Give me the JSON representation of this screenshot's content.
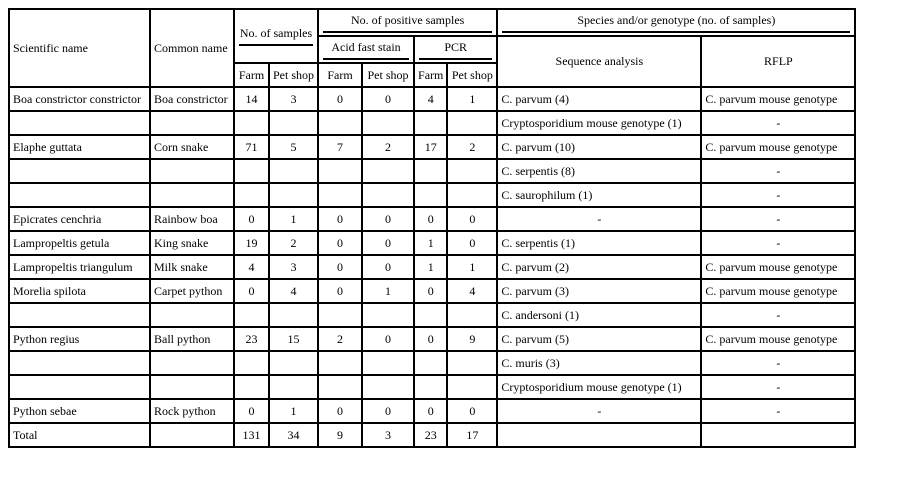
{
  "headers": {
    "scientific_name": "Scientific name",
    "common_name": "Common name",
    "no_samples": "No. of samples",
    "no_positive": "No. of positive samples",
    "acid_fast": "Acid fast stain",
    "pcr": "PCR",
    "species": "Species and/or genotype (no. of samples)",
    "sequence": "Sequence analysis",
    "rflp": "RFLP",
    "farm": "Farm",
    "pet_shop": "Pet shop"
  },
  "rows": [
    [
      "Boa constrictor constrictor",
      "Boa constrictor",
      "14",
      "3",
      "0",
      "0",
      "4",
      "1",
      "C. parvum (4)",
      "C. parvum mouse genotype"
    ],
    [
      "",
      "",
      "",
      "",
      "",
      "",
      "",
      "",
      "Cryptosporidium mouse genotype (1)",
      "-"
    ],
    [
      "Elaphe guttata",
      "Corn snake",
      "71",
      "5",
      "7",
      "2",
      "17",
      "2",
      "C. parvum (10)",
      "C. parvum mouse genotype"
    ],
    [
      "",
      "",
      "",
      "",
      "",
      "",
      "",
      "",
      "C. serpentis (8)",
      "-"
    ],
    [
      "",
      "",
      "",
      "",
      "",
      "",
      "",
      "",
      "C. saurophilum (1)",
      "-"
    ],
    [
      "Epicrates cenchria",
      "Rainbow boa",
      "0",
      "1",
      "0",
      "0",
      "0",
      "0",
      "-",
      "-"
    ],
    [
      "Lampropeltis getula",
      "King snake",
      "19",
      "2",
      "0",
      "0",
      "1",
      "0",
      "C. serpentis (1)",
      "-"
    ],
    [
      "Lampropeltis triangulum",
      "Milk snake",
      "4",
      "3",
      "0",
      "0",
      "1",
      "1",
      "C. parvum (2)",
      "C. parvum mouse genotype"
    ],
    [
      "Morelia spilota",
      "Carpet python",
      "0",
      "4",
      "0",
      "1",
      "0",
      "4",
      "C. parvum (3)",
      "C. parvum mouse genotype"
    ],
    [
      "",
      "",
      "",
      "",
      "",
      "",
      "",
      "",
      "C. andersoni (1)",
      "-"
    ],
    [
      "Python regius",
      "Ball python",
      "23",
      "15",
      "2",
      "0",
      "0",
      "9",
      "C. parvum (5)",
      "C. parvum mouse genotype"
    ],
    [
      "",
      "",
      "",
      "",
      "",
      "",
      "",
      "",
      "C. muris (3)",
      "-"
    ],
    [
      "",
      "",
      "",
      "",
      "",
      "",
      "",
      "",
      "Cryptosporidium mouse genotype (1)",
      "-"
    ],
    [
      "Python sebae",
      "Rock python",
      "0",
      "1",
      "0",
      "0",
      "0",
      "0",
      "-",
      "-"
    ],
    [
      "Total",
      "",
      "131",
      "34",
      "9",
      "3",
      "23",
      "17",
      "",
      ""
    ]
  ]
}
